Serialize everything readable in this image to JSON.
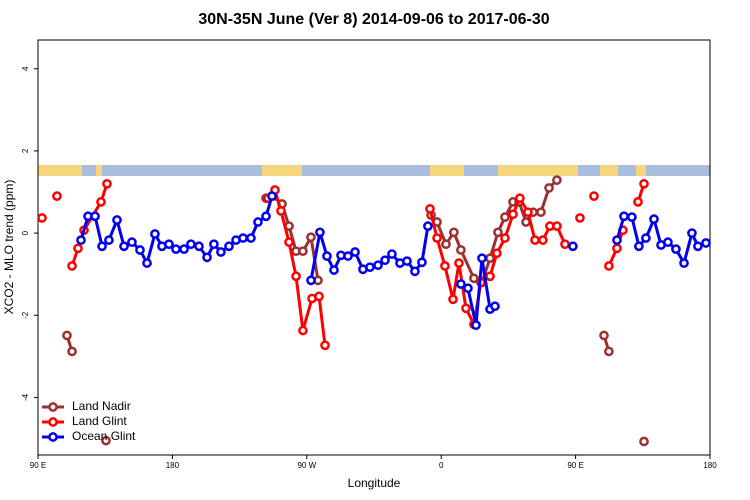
{
  "chart_data": {
    "type": "line",
    "title": "30N-35N June (Ver 8)   2014-09-06 to 2017-06-30",
    "x_label": "Longitude",
    "y_label": "XCO2 - MLO trend (ppm)",
    "xlim": [
      90,
      540
    ],
    "ylim": [
      -5.4,
      4.7
    ],
    "xticks": [
      {
        "value": 90,
        "label": "90 E"
      },
      {
        "value": 180,
        "label": "180"
      },
      {
        "value": 270,
        "label": "90 W"
      },
      {
        "value": 360,
        "label": "0"
      },
      {
        "value": 450,
        "label": "90 E"
      },
      {
        "value": 540,
        "label": "180"
      }
    ],
    "yticks": [
      -4,
      -2,
      0,
      2,
      4
    ],
    "legend": "bottom-left",
    "series": [
      {
        "name": "Land Nadir",
        "color": "#9b3030",
        "x": [
          109.4,
          112.8,
          null,
          135.5,
          null,
          242.7,
          246.7,
          253.4,
          258.1,
          262.8,
          267.4,
          272.8,
          277.5,
          null,
          353.2,
          357.2,
          363.2,
          368.5,
          373.2,
          381.9,
          387.3,
          392.7,
          398.0,
          402.7,
          408.1,
          412.1,
          416.8,
          421.5,
          426.8,
          432.2,
          437.5,
          null,
          469.0,
          472.3,
          null,
          495.8
        ],
        "values": [
          -2.49,
          -2.88,
          null,
          -5.05,
          null,
          0.85,
          0.9,
          0.71,
          0.17,
          -0.44,
          -0.44,
          -0.1,
          -1.15,
          null,
          0.44,
          0.27,
          -0.27,
          0.02,
          -0.41,
          -1.1,
          -1.2,
          -0.61,
          0.02,
          0.39,
          0.76,
          0.76,
          0.27,
          0.51,
          0.51,
          1.1,
          1.29,
          null,
          -2.49,
          -2.88,
          null,
          -5.07
        ]
      },
      {
        "name": "Land Glint",
        "color": "#ff0000",
        "x": [
          92.7,
          null,
          102.7,
          null,
          112.8,
          116.8,
          120.8,
          132.2,
          136.2,
          null,
          244.0,
          248.7,
          252.7,
          258.1,
          262.8,
          267.4,
          273.5,
          278.2,
          282.2,
          null,
          352.5,
          357.2,
          362.5,
          367.9,
          371.9,
          376.6,
          381.9,
          386.6,
          392.7,
          397.3,
          402.7,
          408.1,
          412.7,
          418.1,
          422.8,
          428.1,
          432.8,
          437.5,
          442.9,
          null,
          452.9,
          null,
          462.3,
          null,
          472.3,
          477.7,
          481.7,
          null,
          491.8,
          495.8
        ],
        "values": [
          0.37,
          null,
          0.9,
          null,
          -0.8,
          -0.37,
          0.07,
          0.76,
          1.2,
          null,
          0.85,
          1.05,
          0.54,
          -0.22,
          -1.05,
          -2.37,
          -1.59,
          -1.54,
          -2.73,
          null,
          0.59,
          -0.12,
          -0.8,
          -1.61,
          -0.73,
          -1.83,
          -2.22,
          -1.2,
          -1.05,
          -0.49,
          -0.12,
          0.46,
          0.85,
          0.51,
          -0.17,
          -0.17,
          0.17,
          0.17,
          -0.27,
          null,
          0.37,
          null,
          0.9,
          null,
          -0.8,
          -0.37,
          0.07,
          null,
          0.76,
          1.2
        ]
      },
      {
        "name": "Ocean Glint",
        "color": "#0000ee",
        "x": [
          118.8,
          123.5,
          128.2,
          132.9,
          137.5,
          142.9,
          147.6,
          152.9,
          158.3,
          163.0,
          168.3,
          173.0,
          177.7,
          182.4,
          187.8,
          192.4,
          197.8,
          203.2,
          207.8,
          212.5,
          217.9,
          222.6,
          227.3,
          232.6,
          237.3,
          242.7,
          246.7,
          null,
          272.8,
          278.8,
          283.5,
          288.2,
          292.9,
          297.6,
          302.3,
          307.6,
          312.3,
          317.7,
          322.4,
          327.0,
          332.4,
          337.1,
          342.4,
          347.1,
          351.1,
          null,
          373.2,
          377.9,
          383.3,
          387.3,
          392.7,
          396.0,
          null,
          448.2,
          null,
          477.7,
          482.4,
          487.7,
          492.4,
          497.1,
          502.5,
          507.2,
          511.8,
          517.2,
          522.6,
          527.9,
          531.9,
          537.3
        ],
        "values": [
          -0.17,
          0.41,
          0.41,
          -0.32,
          -0.17,
          0.32,
          -0.32,
          -0.22,
          -0.41,
          -0.73,
          -0.02,
          -0.32,
          -0.27,
          -0.39,
          -0.39,
          -0.27,
          -0.32,
          -0.59,
          -0.27,
          -0.46,
          -0.32,
          -0.17,
          -0.12,
          -0.12,
          0.27,
          0.41,
          0.9,
          null,
          -1.15,
          0.02,
          -0.56,
          -0.9,
          -0.54,
          -0.56,
          -0.46,
          -0.88,
          -0.83,
          -0.78,
          -0.66,
          -0.51,
          -0.73,
          -0.68,
          -0.93,
          -0.71,
          0.17,
          null,
          -1.24,
          -1.34,
          -2.24,
          -0.61,
          -1.85,
          -1.78,
          null,
          -0.32,
          null,
          -0.17,
          0.41,
          0.39,
          -0.32,
          -0.12,
          0.34,
          -0.29,
          -0.22,
          -0.39,
          -0.73,
          0.0,
          -0.32,
          -0.24
        ]
      }
    ]
  }
}
